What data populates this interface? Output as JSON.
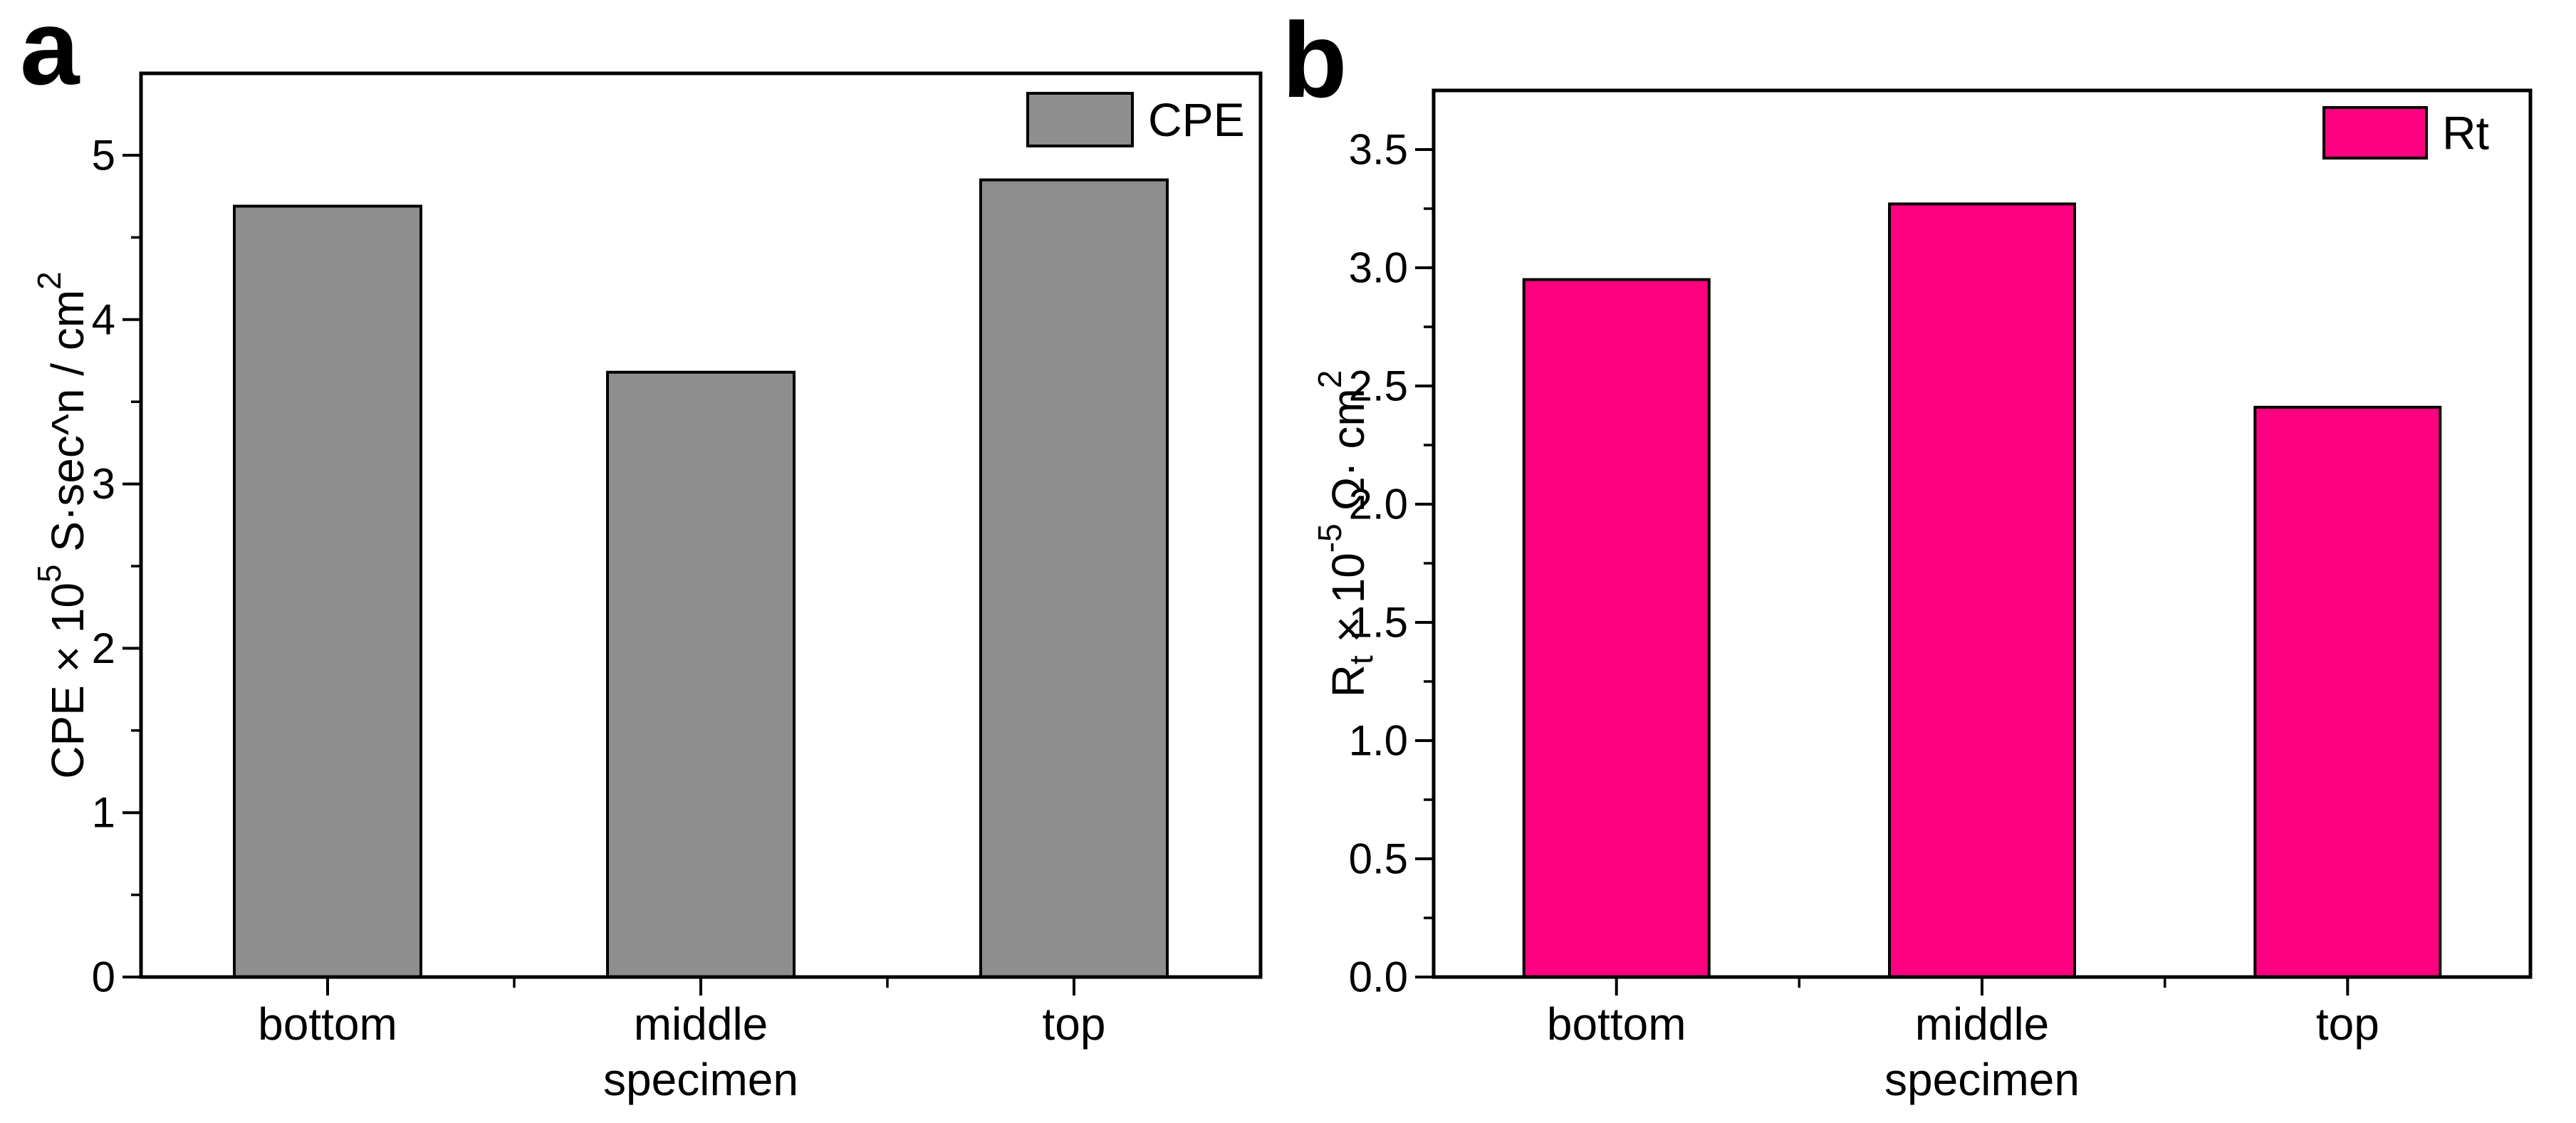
{
  "figure": {
    "background_color": "#ffffff",
    "text_color": "#000000",
    "panel_letters": [
      "a",
      "b"
    ]
  },
  "chart_data": [
    {
      "panel_label": "a",
      "type": "bar",
      "categories": [
        "bottom",
        "middle",
        "top"
      ],
      "values": [
        4.69,
        3.68,
        4.85
      ],
      "series": [
        {
          "name": "CPE",
          "values": [
            4.69,
            3.68,
            4.85
          ]
        }
      ],
      "xlabel": "specimen",
      "ylabel": "CPE × 10⁵ S·sec^n / cm²",
      "ylabel_parts": [
        {
          "text": "CPE × 10"
        },
        {
          "text": "5",
          "style": "sup"
        },
        {
          "text": " S·sec^n / cm"
        },
        {
          "text": "2",
          "style": "sup"
        }
      ],
      "ylim": [
        0,
        5.5
      ],
      "yticks": [
        0,
        1,
        2,
        3,
        4,
        5
      ],
      "ytick_labels": [
        "0",
        "1",
        "2",
        "3",
        "4",
        "5"
      ],
      "minor_ytick_step": 0.5,
      "grid": false,
      "legend": {
        "label": "CPE",
        "position": "upper-right"
      },
      "bar_color": "#8e8e8e",
      "bar_border_color": "#000000"
    },
    {
      "panel_label": "b",
      "type": "bar",
      "categories": [
        "bottom",
        "middle",
        "top"
      ],
      "values": [
        2.95,
        3.27,
        2.41
      ],
      "series": [
        {
          "name": "Rt",
          "values": [
            2.95,
            3.27,
            2.41
          ]
        }
      ],
      "xlabel": "specimen",
      "ylabel": "Rt × 10⁻⁵ Ω· cm²",
      "ylabel_parts": [
        {
          "text": "R"
        },
        {
          "text": "t",
          "style": "sub"
        },
        {
          "text": " × 10"
        },
        {
          "text": "-5",
          "style": "sup"
        },
        {
          "text": " Ω· cm"
        },
        {
          "text": "2",
          "style": "sup"
        }
      ],
      "ylim": [
        0,
        3.75
      ],
      "yticks": [
        0,
        0.5,
        1,
        1.5,
        2,
        2.5,
        3,
        3.5
      ],
      "ytick_labels": [
        "0.0",
        "0.5",
        "1.0",
        "1.5",
        "2.0",
        "2.5",
        "3.0",
        "3.5"
      ],
      "minor_ytick_step": 0.25,
      "grid": false,
      "legend": {
        "label": "Rt",
        "position": "upper-right"
      },
      "bar_color": "#ff0080",
      "bar_border_color": "#000000"
    }
  ]
}
